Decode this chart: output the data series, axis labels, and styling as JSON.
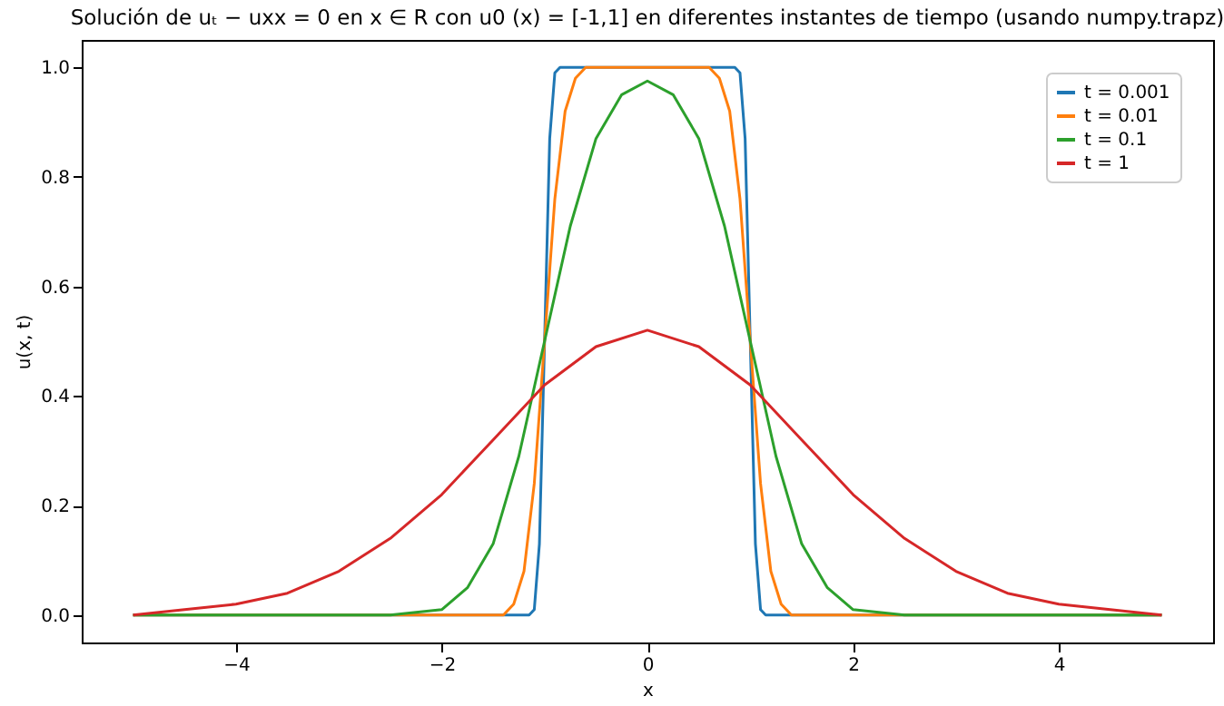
{
  "chart_data": {
    "type": "line",
    "title": "Solución de uₜ − uxx = 0 en x ∈ R con u0 (x) = [-1,1] en diferentes instantes de tiempo (usando numpy.trapz)",
    "xlabel": "x",
    "ylabel": "u(x, t)",
    "xlim": [
      -5.5,
      5.5
    ],
    "xticks": [
      {
        "value": -4,
        "label": "−4"
      },
      {
        "value": -2,
        "label": "−2"
      },
      0,
      2,
      4
    ],
    "ylim": [
      -0.05,
      1.05
    ],
    "yticks": [
      {
        "value": 0,
        "label": "0.0"
      },
      {
        "value": 0.2,
        "label": "0.2"
      },
      {
        "value": 0.4,
        "label": "0.4"
      },
      {
        "value": 0.6,
        "label": "0.6"
      },
      {
        "value": 0.8,
        "label": "0.8"
      },
      {
        "value": 1,
        "label": "1.0"
      }
    ],
    "legend": "top right",
    "series": [
      {
        "name": "t = 0.001",
        "color": "#1f77b4",
        "x": [
          -5,
          -1.15,
          -1.1,
          -1.05,
          -1,
          -0.95,
          -0.9,
          -0.85,
          0,
          0.85,
          0.9,
          0.95,
          1,
          1.05,
          1.1,
          1.15,
          5
        ],
        "values": [
          0,
          0,
          0.01,
          0.13,
          0.5,
          0.87,
          0.99,
          1,
          1,
          1,
          0.99,
          0.87,
          0.5,
          0.13,
          0.01,
          0,
          0
        ]
      },
      {
        "name": "t = 0.01",
        "color": "#ff7f0e",
        "x": [
          -5,
          -1.5,
          -1.4,
          -1.3,
          -1.2,
          -1.1,
          -1,
          -0.9,
          -0.8,
          -0.7,
          -0.6,
          0,
          0.6,
          0.7,
          0.8,
          0.9,
          1,
          1.1,
          1.2,
          1.3,
          1.4,
          1.5,
          5
        ],
        "values": [
          0,
          0,
          0,
          0.02,
          0.08,
          0.24,
          0.5,
          0.76,
          0.92,
          0.98,
          1,
          1,
          1,
          0.98,
          0.92,
          0.76,
          0.5,
          0.24,
          0.08,
          0.02,
          0,
          0,
          0
        ]
      },
      {
        "name": "t = 0.1",
        "color": "#2ca02c",
        "x": [
          -5,
          -3,
          -2.5,
          -2,
          -1.75,
          -1.5,
          -1.25,
          -1,
          -0.75,
          -0.5,
          -0.25,
          0,
          0.25,
          0.5,
          0.75,
          1,
          1.25,
          1.5,
          1.75,
          2,
          2.5,
          3,
          5
        ],
        "values": [
          0,
          0,
          0,
          0.01,
          0.05,
          0.13,
          0.29,
          0.5,
          0.71,
          0.87,
          0.95,
          0.975,
          0.95,
          0.87,
          0.71,
          0.5,
          0.29,
          0.13,
          0.05,
          0.01,
          0,
          0,
          0
        ]
      },
      {
        "name": "t = 1",
        "color": "#d62728",
        "x": [
          -5,
          -4.5,
          -4,
          -3.5,
          -3,
          -2.5,
          -2,
          -1.5,
          -1,
          -0.5,
          0,
          0.5,
          1,
          1.5,
          2,
          2.5,
          3,
          3.5,
          4,
          4.5,
          5
        ],
        "values": [
          0,
          0.01,
          0.02,
          0.04,
          0.08,
          0.14,
          0.22,
          0.32,
          0.42,
          0.49,
          0.52,
          0.49,
          0.42,
          0.32,
          0.22,
          0.14,
          0.08,
          0.04,
          0.02,
          0.01,
          0
        ]
      }
    ]
  }
}
